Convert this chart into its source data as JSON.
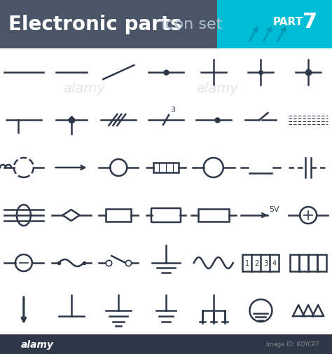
{
  "title_main": "Electronic parts",
  "title_sub": "icon set",
  "part_label": "PART 7",
  "bg_header": "#4a5568",
  "bg_cyan": "#00bcd4",
  "bg_body": "#ffffff",
  "bg_footer": "#2d3748",
  "symbol_color": "#2d3748",
  "lw": 1.8,
  "fig_w": 4.74,
  "fig_h": 5.06
}
